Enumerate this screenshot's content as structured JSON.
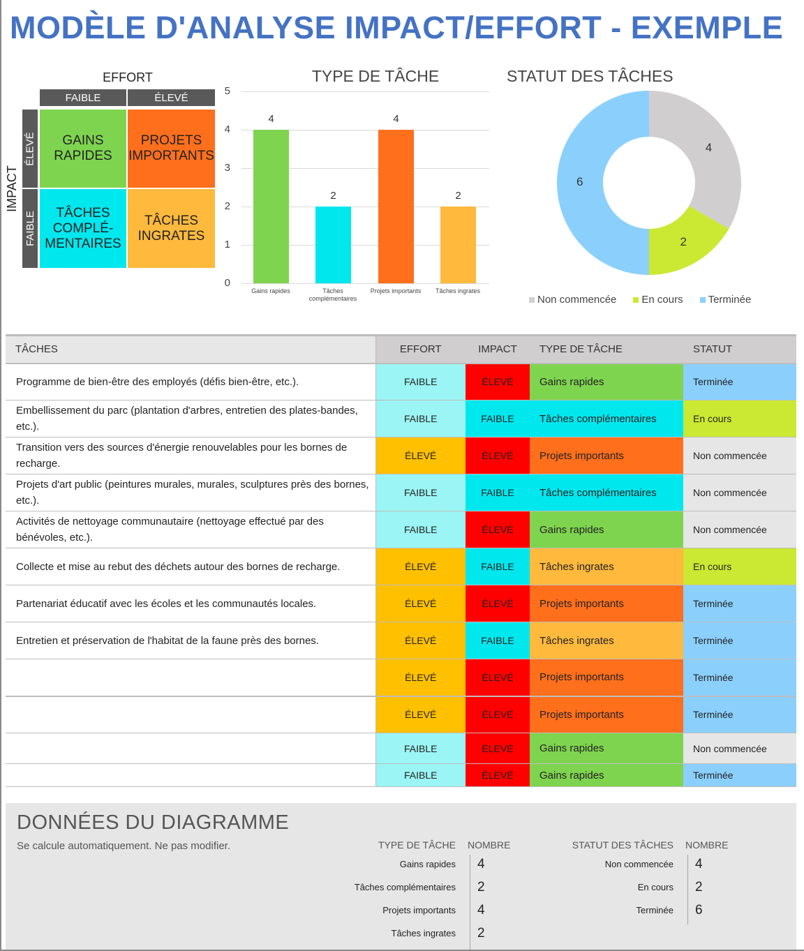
{
  "title": "MODÈLE D'ANALYSE IMPACT/EFFORT - EXEMPLE",
  "matrix": {
    "effort_label": "EFFORT",
    "impact_label": "IMPACT",
    "effort_low": "FAIBLE",
    "effort_high": "ÉLEVÉ",
    "impact_high": "ÉLEVÉ",
    "impact_low": "FAIBLE",
    "quadrants": {
      "quick_wins": "GAINS\nRAPIDES",
      "major_projects": "PROJETS\nIMPORTANTS",
      "fill_ins": "TÂCHES\nCOMPLÉ-\nMENTAIRES",
      "thankless": "TÂCHES\nINGRATES"
    },
    "colors": {
      "quick_wins": "#7ed44f",
      "major_projects": "#ff6f1c",
      "fill_ins": "#00e7ed",
      "thankless": "#ffb93d",
      "header": "#595959"
    }
  },
  "chart_data": [
    {
      "type": "bar",
      "title": "TYPE DE TÂCHE",
      "categories": [
        "Gains rapides",
        "Tâches complémentaires",
        "Projets importants",
        "Tâches ingrates"
      ],
      "values": [
        4,
        2,
        4,
        2
      ],
      "colors": [
        "#7ed44f",
        "#00e7ed",
        "#ff6f1c",
        "#ffb93d"
      ],
      "yticks": [
        "0",
        "1",
        "2",
        "3",
        "4",
        "5"
      ],
      "ylim": [
        0,
        5
      ],
      "grid": true,
      "xlabel": "",
      "ylabel": ""
    },
    {
      "type": "pie",
      "subtype": "donut",
      "title": "STATUT DES TÂCHES",
      "categories": [
        "Non commencée",
        "En cours",
        "Terminée"
      ],
      "values": [
        4,
        2,
        6
      ],
      "colors": [
        "#d0cece",
        "#cbe932",
        "#8bd0fd"
      ],
      "legend_position": "bottom"
    }
  ],
  "table": {
    "headers": {
      "task": "TÂCHES",
      "effort": "EFFORT",
      "impact": "IMPACT",
      "type": "TYPE DE TÂCHE",
      "status": "STATUT"
    },
    "rows": [
      {
        "task": "Programme de bien-être des employés (défis bien-être, etc.).",
        "effort": "FAIBLE",
        "impact": "ÉLEVÉ",
        "type": "Gains rapides",
        "status": "Terminée"
      },
      {
        "task": "Embellissement du parc (plantation d'arbres, entretien des plates-bandes, etc.).",
        "effort": "FAIBLE",
        "impact": "FAIBLE",
        "type": "Tâches complémentaires",
        "status": "En cours"
      },
      {
        "task": "Transition vers des sources d'énergie renouvelables pour les bornes de recharge.",
        "effort": "ÉLEVÉ",
        "impact": "ÉLEVÉ",
        "type": "Projets importants",
        "status": "Non commencée"
      },
      {
        "task": "Projets d'art public (peintures murales, murales, sculptures près des bornes, etc.).",
        "effort": "FAIBLE",
        "impact": "FAIBLE",
        "type": "Tâches complémentaires",
        "status": "Non commencée"
      },
      {
        "task": "Activités de nettoyage communautaire (nettoyage effectué par des bénévoles, etc.).",
        "effort": "FAIBLE",
        "impact": "ÉLEVÉ",
        "type": "Gains rapides",
        "status": "Non commencée"
      },
      {
        "task": "Collecte et mise au rebut des déchets autour des bornes de recharge.",
        "effort": "ÉLEVÉ",
        "impact": "FAIBLE",
        "type": "Tâches ingrates",
        "status": "En cours"
      },
      {
        "task": "Partenariat éducatif avec les écoles et les communautés locales.",
        "effort": "ÉLEVÉ",
        "impact": "ÉLEVÉ",
        "type": "Projets importants",
        "status": "Terminée"
      },
      {
        "task": "Entretien et préservation de l'habitat de la faune près des bornes.",
        "effort": "ÉLEVÉ",
        "impact": "FAIBLE",
        "type": "Tâches ingrates",
        "status": "Terminée"
      },
      {
        "task": "",
        "effort": "ÉLEVÉ",
        "impact": "ÉLEVÉ",
        "type": "Projets importants",
        "status": "Terminée"
      },
      {
        "task": "",
        "effort": "ÉLEVÉ",
        "impact": "ÉLEVÉ",
        "type": "Projets importants",
        "status": "Terminée"
      },
      {
        "task": "",
        "effort": "FAIBLE",
        "impact": "ÉLEVÉ",
        "type": "Gains rapides",
        "status": "Non commencée"
      },
      {
        "task": "",
        "effort": "FAIBLE",
        "impact": "ÉLEVÉ",
        "type": "Gains rapides",
        "status": "Terminée"
      }
    ],
    "colors": {
      "effort_low": "#9bf5f4",
      "effort_high": "#ffc000",
      "impact_low": "#00e7ed",
      "impact_high": "#ff0000",
      "status_done": "#8bd0fd",
      "status_progress": "#cbe932",
      "status_notstarted": "#e6e6e6"
    }
  },
  "chart_source": {
    "title": "DONNÉES DU DIAGRAMME",
    "subtitle": "Se calcule automatiquement. Ne pas modifier.",
    "type_table": {
      "header_label": "TYPE DE TÂCHE",
      "header_count": "NOMBRE",
      "rows": [
        {
          "label": "Gains rapides",
          "count": "4"
        },
        {
          "label": "Tâches complémentaires",
          "count": "2"
        },
        {
          "label": "Projets importants",
          "count": "4"
        },
        {
          "label": "Tâches ingrates",
          "count": "2"
        }
      ]
    },
    "status_table": {
      "header_label": "STATUT DES TÂCHES",
      "header_count": "NOMBRE",
      "rows": [
        {
          "label": "Non commencée",
          "count": "4"
        },
        {
          "label": "En cours",
          "count": "2"
        },
        {
          "label": "Terminée",
          "count": "6"
        }
      ]
    }
  }
}
